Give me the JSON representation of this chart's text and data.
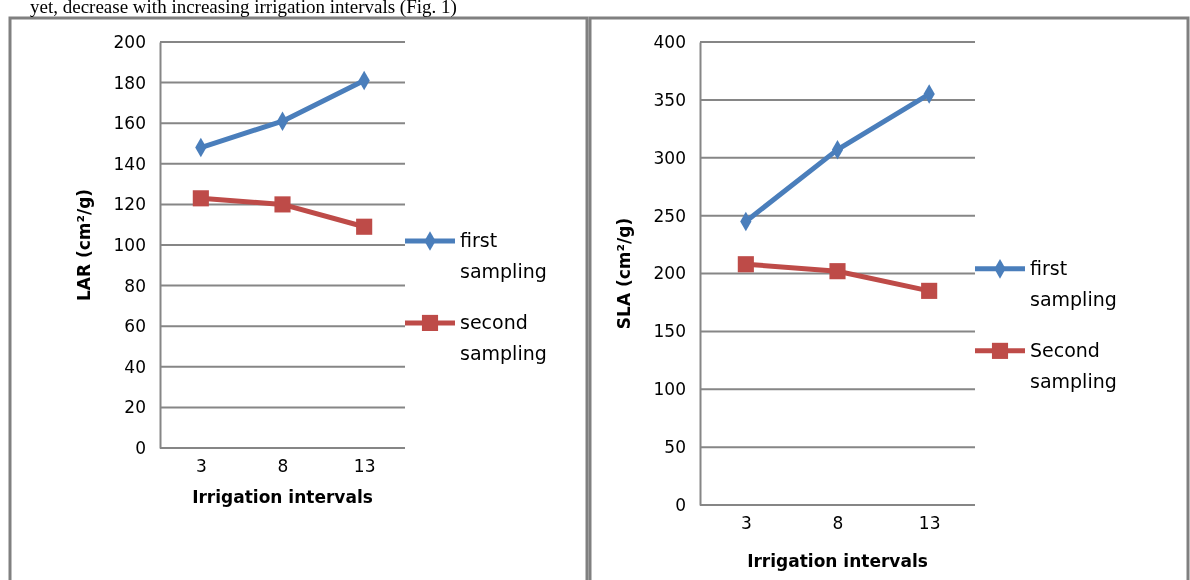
{
  "chart_data": [
    {
      "type": "line",
      "xlabel": "Irrigation intervals",
      "ylabel": "LAR (cm²/g)",
      "categories": [
        "3",
        "8",
        "13"
      ],
      "ylim": [
        0,
        200
      ],
      "yticks": [
        0,
        20,
        40,
        60,
        80,
        100,
        120,
        140,
        160,
        180,
        200
      ],
      "grid": "y",
      "legend": "right",
      "annotations": [
        "yet, decrease with increasing irrigation intervals (Fig. 1)"
      ],
      "series": [
        {
          "name": "first sampling",
          "color": "#4a7ebb",
          "marker": "diamond",
          "values": [
            148,
            161,
            181
          ]
        },
        {
          "name": "second sampling",
          "color": "#be4b48",
          "marker": "square",
          "values": [
            123,
            120,
            109
          ]
        }
      ]
    },
    {
      "type": "line",
      "xlabel": "Irrigation intervals",
      "ylabel": "SLA (cm²/g)",
      "categories": [
        "3",
        "8",
        "13"
      ],
      "ylim": [
        0,
        400
      ],
      "yticks": [
        0,
        50,
        100,
        150,
        200,
        250,
        300,
        350,
        400
      ],
      "grid": "y",
      "legend": "right",
      "series": [
        {
          "name": "first sampling",
          "color": "#4a7ebb",
          "marker": "diamond",
          "values": [
            245,
            307,
            355
          ]
        },
        {
          "name": "Second sampling",
          "color": "#be4b48",
          "marker": "square",
          "values": [
            208,
            202,
            185
          ]
        }
      ]
    }
  ]
}
